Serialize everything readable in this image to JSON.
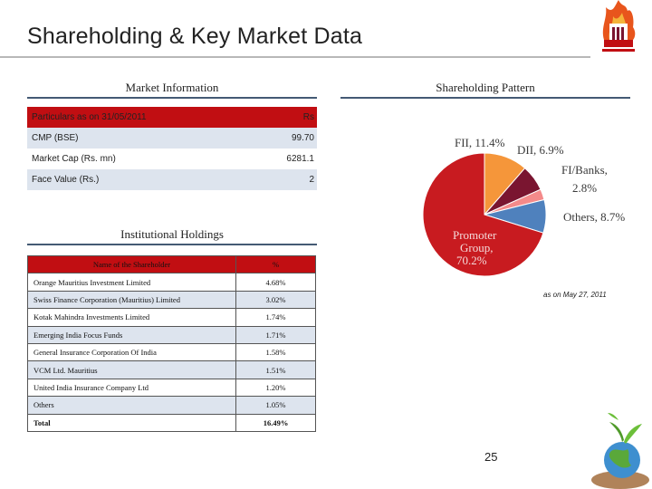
{
  "slide": {
    "title": "Shareholding & Key Market Data",
    "page_number": "25"
  },
  "market_info": {
    "heading": "Market Information",
    "header": {
      "label": "Particulars as on 31/05/2011",
      "value": "Rs"
    },
    "rows": [
      {
        "label": "CMP (BSE)",
        "value": "99.70"
      },
      {
        "label": "Market Cap (Rs. mn)",
        "value": "6281.1"
      },
      {
        "label": "Face Value (Rs.)",
        "value": "2"
      }
    ]
  },
  "institutional": {
    "heading": "Institutional Holdings",
    "header": {
      "name": "Name of the Shareholder",
      "pct": "%"
    },
    "rows": [
      {
        "name": "Orange Mauritius Investment Limited",
        "pct": "4.68%"
      },
      {
        "name": "Swiss Finance Corporation (Mauritius) Limited",
        "pct": "3.02%"
      },
      {
        "name": "Kotak Mahindra Investments Limited",
        "pct": "1.74%"
      },
      {
        "name": "Emerging India Focus Funds",
        "pct": "1.71%"
      },
      {
        "name": "General Insurance Corporation Of India",
        "pct": "1.58%"
      },
      {
        "name": "VCM Ltd. Mauritius",
        "pct": "1.51%"
      },
      {
        "name": "United India Insurance Company Ltd",
        "pct": "1.20%"
      },
      {
        "name": "Others",
        "pct": "1.05%"
      },
      {
        "name": "Total",
        "pct": "16.49%"
      }
    ]
  },
  "shareholding": {
    "heading": "Shareholding Pattern",
    "as_of": "as on May 27, 2011"
  },
  "chart_data": {
    "type": "pie",
    "title": "Shareholding Pattern",
    "slices": [
      {
        "label_lines": [
          "FII, 11.4%"
        ],
        "value": 11.4,
        "color": "#f5963a"
      },
      {
        "label_lines": [
          "DII, 6.9%"
        ],
        "value": 6.9,
        "color": "#7a1530"
      },
      {
        "label_lines": [
          "FI/Banks,",
          "2.8%"
        ],
        "value": 2.8,
        "color": "#f48a8a"
      },
      {
        "label_lines": [
          "Others, 8.7%"
        ],
        "value": 8.7,
        "color": "#4f81bd"
      },
      {
        "label_lines": [
          "Promoter",
          "Group,",
          "70.2%"
        ],
        "value": 70.2,
        "color": "#c81b20"
      }
    ]
  },
  "colors": {
    "table_header": "#c10e12",
    "row_shade": "#dde4ee",
    "rule": "#445a74"
  }
}
